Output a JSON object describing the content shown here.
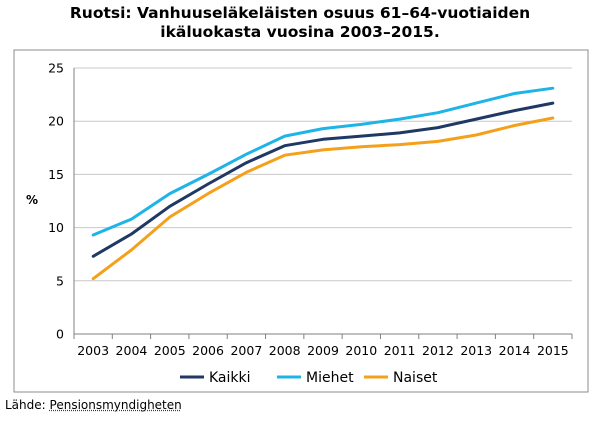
{
  "chart_data": {
    "type": "line",
    "title_lines": [
      "Ruotsi: Vanhuuseläkeläisten osuus 61–64-vuotiaiden",
      "ikäluokasta vuosina 2003–2015."
    ],
    "ylabel": "%",
    "xlabel": "",
    "categories": [
      "2003",
      "2004",
      "2005",
      "2006",
      "2007",
      "2008",
      "2009",
      "2010",
      "2011",
      "2012",
      "2013",
      "2014",
      "2015"
    ],
    "ylim": [
      0,
      25
    ],
    "yticks": [
      0,
      5,
      10,
      15,
      20,
      25
    ],
    "grid": "horizontal",
    "legend_position": "bottom",
    "series": [
      {
        "name": "Kaikki",
        "color": "#1f3864",
        "values": [
          7.3,
          9.4,
          12.0,
          14.1,
          16.1,
          17.7,
          18.3,
          18.6,
          18.9,
          19.4,
          20.2,
          21.0,
          21.7
        ]
      },
      {
        "name": "Miehet",
        "color": "#1fb4e8",
        "values": [
          9.3,
          10.8,
          13.2,
          15.0,
          16.9,
          18.6,
          19.3,
          19.7,
          20.2,
          20.8,
          21.7,
          22.6,
          23.1
        ]
      },
      {
        "name": "Naiset",
        "color": "#f5a01a",
        "values": [
          5.2,
          7.9,
          11.0,
          13.2,
          15.2,
          16.8,
          17.3,
          17.6,
          17.8,
          18.1,
          18.7,
          19.6,
          20.3
        ]
      }
    ]
  },
  "source": {
    "label": "Lähde:",
    "name": "Pensionsmyndigheten"
  }
}
